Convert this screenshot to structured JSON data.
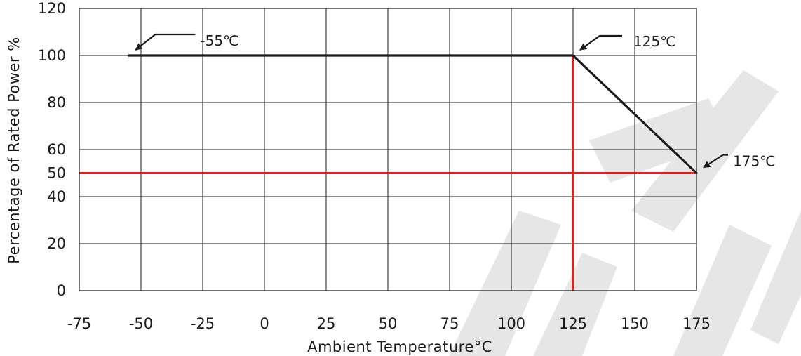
{
  "chart_data": {
    "type": "line",
    "xlabel": "Ambient Temperature°C",
    "ylabel": "Percentage of Rated Power %",
    "xlim": [
      -75,
      175
    ],
    "ylim": [
      0,
      120
    ],
    "x_ticks": [
      -75,
      -50,
      -25,
      0,
      25,
      50,
      75,
      100,
      125,
      150,
      175
    ],
    "y_ticks": [
      0,
      20,
      40,
      50,
      60,
      80,
      100,
      120
    ],
    "x_gridlines": [
      -50,
      -25,
      0,
      25,
      50,
      75,
      100,
      125,
      150,
      175
    ],
    "y_gridlines": [
      20,
      40,
      50,
      60,
      80,
      100
    ],
    "grid": true,
    "series": [
      {
        "points": [
          {
            "x": -55,
            "y": 100
          },
          {
            "x": 125,
            "y": 100
          },
          {
            "x": 175,
            "y": 50
          }
        ],
        "color": "#1a1a1a"
      }
    ],
    "reference_lines": [
      {
        "orientation": "vertical",
        "value": 125,
        "color": "#e02020"
      },
      {
        "orientation": "horizontal",
        "value": 50,
        "color": "#e02020"
      }
    ],
    "annotations": [
      {
        "text": "-55℃",
        "x": -55,
        "y": 100
      },
      {
        "text": "125℃",
        "x": 125,
        "y": 100
      },
      {
        "text": "175℃",
        "x": 175,
        "y": 50
      }
    ]
  }
}
